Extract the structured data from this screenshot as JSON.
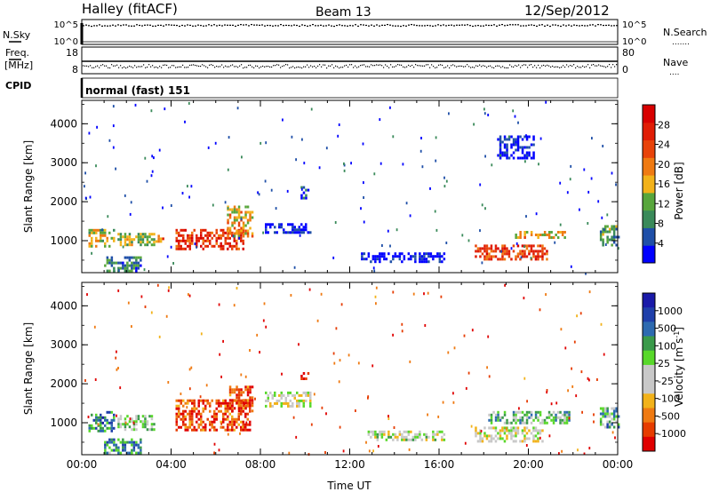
{
  "header": {
    "station": "Halley (fitACF)",
    "beam": "Beam 13",
    "date": "12/Sep/2012"
  },
  "nsky_panel": {
    "left_label": "N.Sky",
    "right_label": "N.Search",
    "left_ticks": [
      "10^5",
      "10^0"
    ],
    "right_ticks": [
      "10^5",
      "10^0"
    ],
    "right_dots": "......."
  },
  "freq_panel": {
    "left_label": "Freq.",
    "unit_label": "[MHz]",
    "right_label": "Nave",
    "left_ticks": [
      "18",
      "8"
    ],
    "right_ticks": [
      "80",
      "0"
    ],
    "right_dots": "....",
    "cpid_label": "CPID",
    "cpid_value": "normal (fast) 151"
  },
  "colors": {
    "power": [
      "#0000ff",
      "#1f4fa8",
      "#3a8a5a",
      "#58a63c",
      "#f2b21a",
      "#ef7a12",
      "#e8430a",
      "#e01d05",
      "#d80000"
    ],
    "velocity": [
      "#e00000",
      "#e63c00",
      "#ef7a12",
      "#f2b21a",
      "#c8c8c8",
      "#c8c8c8",
      "#58d82a",
      "#3a9a4a",
      "#2d6ab0",
      "#1f3faa",
      "#1a1aa8"
    ]
  },
  "chart_data": [
    {
      "type": "heatmap",
      "panel": "power",
      "ylabel": "Slant Range [km]",
      "ylim": [
        180,
        4600
      ],
      "yticks": [
        "1000",
        "2000",
        "3000",
        "4000"
      ],
      "xlim": [
        "00:00",
        "24:00"
      ],
      "colorbar_label": "Power [dB]",
      "colorbar_ticks": [
        "4",
        "8",
        "12",
        "16",
        "20",
        "24",
        "28"
      ],
      "regions": [
        {
          "t": [
            0.3,
            1.4
          ],
          "r": [
            850,
            1300
          ],
          "level": 0.45
        },
        {
          "t": [
            1.6,
            3.2
          ],
          "r": [
            900,
            1200
          ],
          "level": 0.4
        },
        {
          "t": [
            3.2,
            3.6
          ],
          "r": [
            950,
            1150
          ],
          "level": 0.7
        },
        {
          "t": [
            4.2,
            7.2
          ],
          "r": [
            800,
            1300
          ],
          "level": 0.8
        },
        {
          "t": [
            6.5,
            7.6
          ],
          "r": [
            1100,
            1900
          ],
          "level": 0.55
        },
        {
          "t": [
            1.0,
            2.6
          ],
          "r": [
            250,
            600
          ],
          "level": 0.25
        },
        {
          "t": [
            8.2,
            10.2
          ],
          "r": [
            1200,
            1450
          ],
          "level": 0.05
        },
        {
          "t": [
            9.8,
            10.1
          ],
          "r": [
            2100,
            2400
          ],
          "level": 0.15
        },
        {
          "t": [
            12.5,
            16.2
          ],
          "r": [
            450,
            700
          ],
          "level": 0.05
        },
        {
          "t": [
            17.6,
            20.8
          ],
          "r": [
            550,
            900
          ],
          "level": 0.75
        },
        {
          "t": [
            19.4,
            21.6
          ],
          "r": [
            1050,
            1250
          ],
          "level": 0.5
        },
        {
          "t": [
            18.6,
            20.2
          ],
          "r": [
            3100,
            3700
          ],
          "level": 0.05
        },
        {
          "t": [
            23.2,
            24.0
          ],
          "r": [
            900,
            1400
          ],
          "level": 0.3
        }
      ]
    },
    {
      "type": "heatmap",
      "panel": "velocity",
      "ylabel": "Slant Range [km]",
      "ylim": [
        180,
        4600
      ],
      "yticks": [
        "1000",
        "2000",
        "3000",
        "4000"
      ],
      "xlim": [
        "00:00",
        "24:00"
      ],
      "xticks": [
        "00:00",
        "04:00",
        "08:00",
        "12:00",
        "16:00",
        "20:00",
        "00:00"
      ],
      "xlabel": "Time UT",
      "colorbar_label": "Velocity [m s^-1]",
      "colorbar_ticks": [
        "1000",
        "500",
        "100",
        "25",
        "-25",
        "-100",
        "-500",
        "-1000"
      ],
      "regions": [
        {
          "t": [
            0.3,
            1.4
          ],
          "r": [
            800,
            1300
          ],
          "level": 0.75
        },
        {
          "t": [
            1.6,
            3.2
          ],
          "r": [
            850,
            1200
          ],
          "level": 0.55
        },
        {
          "t": [
            1.0,
            2.6
          ],
          "r": [
            250,
            600
          ],
          "level": 0.7
        },
        {
          "t": [
            4.2,
            7.5
          ],
          "r": [
            800,
            1600
          ],
          "level": 0.15
        },
        {
          "t": [
            6.6,
            7.6
          ],
          "r": [
            1300,
            1950
          ],
          "level": 0.12
        },
        {
          "t": [
            8.2,
            10.2
          ],
          "r": [
            1400,
            1800
          ],
          "level": 0.45
        },
        {
          "t": [
            9.8,
            10.1
          ],
          "r": [
            2100,
            2300
          ],
          "level": 0.1
        },
        {
          "t": [
            12.8,
            16.2
          ],
          "r": [
            550,
            800
          ],
          "level": 0.48
        },
        {
          "t": [
            17.6,
            20.6
          ],
          "r": [
            500,
            900
          ],
          "level": 0.45
        },
        {
          "t": [
            18.2,
            21.8
          ],
          "r": [
            1000,
            1300
          ],
          "level": 0.6
        },
        {
          "t": [
            23.2,
            24.0
          ],
          "r": [
            900,
            1400
          ],
          "level": 0.65
        }
      ]
    }
  ]
}
